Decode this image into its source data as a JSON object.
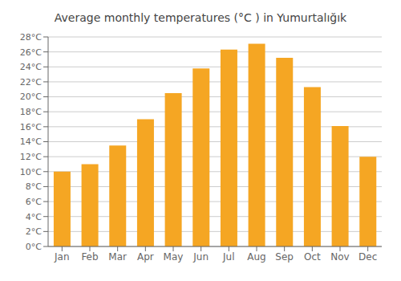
{
  "chart_data": {
    "type": "bar",
    "title": "Average monthly temperatures (°C ) in Yumurtalığık",
    "categories": [
      "Jan",
      "Feb",
      "Mar",
      "Apr",
      "May",
      "Jun",
      "Jul",
      "Aug",
      "Sep",
      "Oct",
      "Nov",
      "Dec"
    ],
    "values": [
      10.0,
      11.0,
      13.5,
      17.0,
      20.5,
      23.8,
      26.3,
      27.1,
      25.2,
      21.3,
      16.1,
      12.0
    ],
    "color": "#F5A623",
    "ylim": [
      0,
      28
    ],
    "yticks": [
      {
        "value": 0,
        "label": "0°C"
      },
      {
        "value": 2,
        "label": "2°C"
      },
      {
        "value": 4,
        "label": "4°C"
      },
      {
        "value": 6,
        "label": "6°C"
      },
      {
        "value": 8,
        "label": "8°C"
      },
      {
        "value": 10,
        "label": "10°C"
      },
      {
        "value": 12,
        "label": "12°C"
      },
      {
        "value": 14,
        "label": "14°C"
      },
      {
        "value": 16,
        "label": "16°C"
      },
      {
        "value": 18,
        "label": "18°C"
      },
      {
        "value": 20,
        "label": "20°C"
      },
      {
        "value": 22,
        "label": "22°C"
      },
      {
        "value": 24,
        "label": "24°C"
      },
      {
        "value": 26,
        "label": "26°C"
      },
      {
        "value": 28,
        "label": "28°C"
      }
    ],
    "grid": true
  }
}
